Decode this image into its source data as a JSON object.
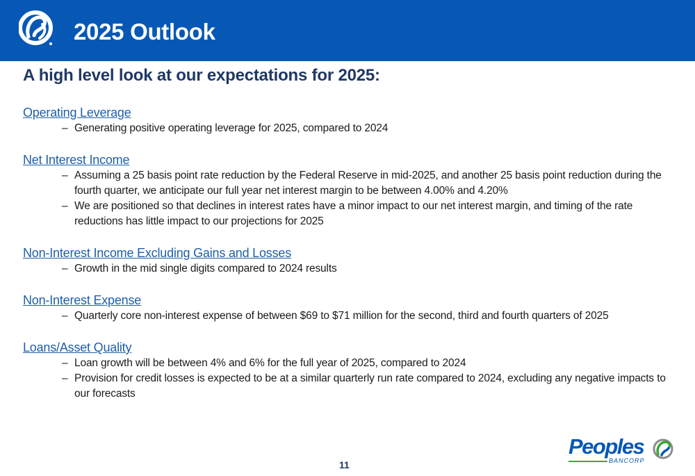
{
  "header": {
    "title": "2025 Outlook",
    "logo_icon": "peoples-swirl-logo-icon",
    "background_color": "#0758b5"
  },
  "subtitle": "A high level look at our expectations for 2025:",
  "sections": [
    {
      "heading": "Operating Leverage",
      "bullets": [
        "Generating positive operating leverage for 2025, compared to 2024"
      ]
    },
    {
      "heading": "Net Interest Income",
      "bullets": [
        "Assuming a 25 basis point rate reduction by the Federal Reserve in mid-2025, and another 25 basis point reduction during the fourth quarter, we anticipate our full year net interest margin to be between 4.00% and 4.20%",
        "We are positioned so that declines in interest rates have a minor impact to our net interest margin, and timing of the rate reductions has little impact to our projections for 2025"
      ]
    },
    {
      "heading": "Non-Interest Income Excluding Gains and Losses",
      "bullets": [
        "Growth in the mid single digits compared to 2024 results"
      ]
    },
    {
      "heading": "Non-Interest Expense",
      "bullets": [
        "Quarterly core non-interest expense of between $69 to $71 million for the second, third and fourth quarters of 2025"
      ]
    },
    {
      "heading": "Loans/Asset Quality",
      "bullets": [
        "Loan growth will be between 4% and 6% for the full year of 2025, compared to 2024",
        "Provision for credit losses is expected to be at a similar quarterly run rate compared to 2024, excluding any negative impacts to our forecasts"
      ]
    }
  ],
  "bullet_marker": "–",
  "page_number": "11",
  "footer_logo": {
    "wordmark": "Peoples",
    "subtext": "BANCORP",
    "icon": "peoples-swirl-logo-icon",
    "colors": {
      "blue": "#0758b5",
      "green": "#3aa935",
      "gray": "#8c8c8c"
    }
  }
}
